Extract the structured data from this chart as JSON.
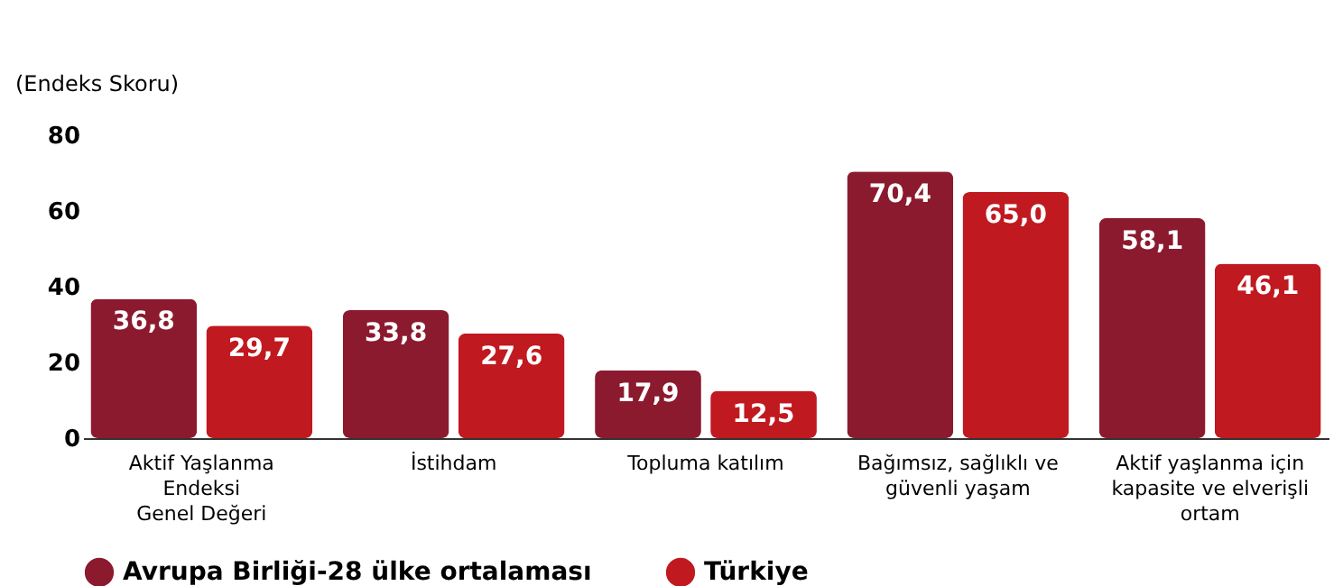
{
  "chart_data": {
    "type": "bar",
    "ylabel": "(Endeks Skoru)",
    "categories": [
      "Aktif Yaşlanma\nEndeksi\nGenel Değeri",
      "İstihdam",
      "Topluma katılım",
      "Bağımsız, sağlıklı ve\ngüvenli yaşam",
      "Aktif yaşlanma için\nkapasite ve elverişli\nortam"
    ],
    "series": [
      {
        "name": "Avrupa Birliği-28 ülke ortalaması",
        "color": "#8b1a2f",
        "values": [
          36.8,
          33.8,
          17.9,
          70.4,
          58.1
        ],
        "value_labels": [
          "36,8",
          "33,8",
          "17,9",
          "70,4",
          "58,1"
        ]
      },
      {
        "name": "Türkiye",
        "color": "#c0191f",
        "values": [
          29.7,
          27.6,
          12.5,
          65.0,
          46.1
        ],
        "value_labels": [
          "29,7",
          "27,6",
          "12,5",
          "65,0",
          "46,1"
        ]
      }
    ],
    "ylim": [
      0,
      80
    ],
    "yticks": [
      0,
      20,
      40,
      60,
      80
    ],
    "grid": false,
    "legend": "bottom"
  }
}
